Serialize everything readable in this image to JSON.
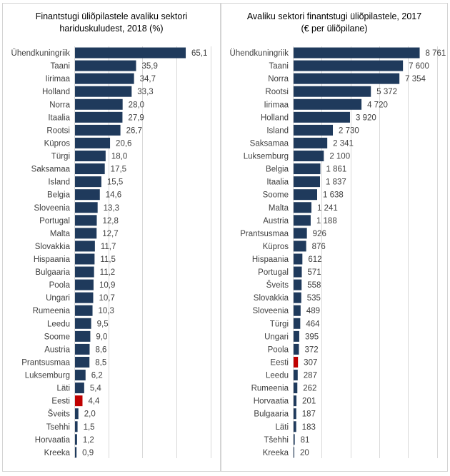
{
  "chart_data": [
    {
      "type": "bar",
      "orientation": "horizontal",
      "title_lines": [
        "Finantstugi üliõpilastele avaliku sektori",
        "hariduskuludest, 2018 (%)"
      ],
      "xlabel": "",
      "ylabel": "",
      "xlim": [
        0,
        80
      ],
      "grid_ticks": [
        0,
        20,
        40,
        60,
        80
      ],
      "grid": "vertical",
      "legend": "none",
      "categories": [
        "Ühendkuningriik",
        "Taani",
        "Iirimaa",
        "Holland",
        "Norra",
        "Itaalia",
        "Rootsi",
        "Küpros",
        "Türgi",
        "Saksamaa",
        "Island",
        "Belgia",
        "Sloveenia",
        "Portugal",
        "Malta",
        "Slovakkia",
        "Hispaania",
        "Bulgaaria",
        "Poola",
        "Ungari",
        "Rumeenia",
        "Leedu",
        "Soome",
        "Austria",
        "Prantsusmaa",
        "Luksemburg",
        "Läti",
        "Eesti",
        "Šveits",
        "Tsehhi",
        "Horvaatia",
        "Kreeka"
      ],
      "values": [
        65.1,
        35.9,
        34.7,
        33.3,
        28.0,
        27.9,
        26.7,
        20.6,
        18.0,
        17.5,
        15.5,
        14.6,
        13.3,
        12.8,
        12.7,
        11.7,
        11.5,
        11.2,
        10.9,
        10.7,
        10.3,
        9.5,
        9.0,
        8.6,
        8.5,
        6.2,
        5.4,
        4.4,
        2.0,
        1.5,
        1.2,
        0.9
      ],
      "value_labels": [
        "65,1",
        "35,9",
        "34,7",
        "33,3",
        "28,0",
        "27,9",
        "26,7",
        "20,6",
        "18,0",
        "17,5",
        "15,5",
        "14,6",
        "13,3",
        "12,8",
        "12,7",
        "11,7",
        "11,5",
        "11,2",
        "10,9",
        "10,7",
        "10,3",
        "9,5",
        "9,0",
        "8,6",
        "8,5",
        "6,2",
        "5,4",
        "4,4",
        "2,0",
        "1,5",
        "1,2",
        "0,9"
      ],
      "highlight": "Eesti"
    },
    {
      "type": "bar",
      "orientation": "horizontal",
      "title_lines": [
        "Avaliku sektori finantstugi üliõpilastele, 2017",
        "(€ per üliõpilane)"
      ],
      "xlabel": "",
      "ylabel": "",
      "xlim": [
        0,
        10000
      ],
      "grid_ticks": [
        0,
        2000,
        4000,
        6000,
        8000,
        10000
      ],
      "grid": "vertical",
      "legend": "none",
      "categories": [
        "Ühendkuningriik",
        "Taani",
        "Norra",
        "Rootsi",
        "Iirimaa",
        "Holland",
        "Island",
        "Saksamaa",
        "Luksemburg",
        "Belgia",
        "Itaalia",
        "Soome",
        "Malta",
        "Austria",
        "Prantsusmaa",
        "Küpros",
        "Hispaania",
        "Portugal",
        "Šveits",
        "Slovakkia",
        "Sloveenia",
        "Türgi",
        "Ungari",
        "Poola",
        "Eesti",
        "Leedu",
        "Rumeenia",
        "Horvaatia",
        "Bulgaaria",
        "Läti",
        "Tšehhi",
        "Kreeka"
      ],
      "values": [
        8761,
        7600,
        7354,
        5372,
        4720,
        3920,
        2730,
        2341,
        2100,
        1861,
        1837,
        1638,
        1241,
        1188,
        926,
        876,
        612,
        571,
        558,
        535,
        489,
        464,
        395,
        372,
        307,
        287,
        262,
        201,
        187,
        183,
        81,
        20
      ],
      "value_labels": [
        "8 761",
        "7 600",
        "7 354",
        "5 372",
        "4 720",
        "3 920",
        "2 730",
        "2 341",
        "2 100",
        "1 861",
        "1 837",
        "1 638",
        "1 241",
        "1 188",
        "926",
        "876",
        "612",
        "571",
        "558",
        "535",
        "489",
        "464",
        "395",
        "372",
        "307",
        "287",
        "262",
        "201",
        "187",
        "183",
        "81",
        "20"
      ],
      "highlight": "Eesti"
    }
  ],
  "colors": {
    "bar": "#1f3a5c",
    "highlight_bar": "#c00000",
    "gridline": "#d9d9d9",
    "panel_border": "#d4d4d4"
  }
}
